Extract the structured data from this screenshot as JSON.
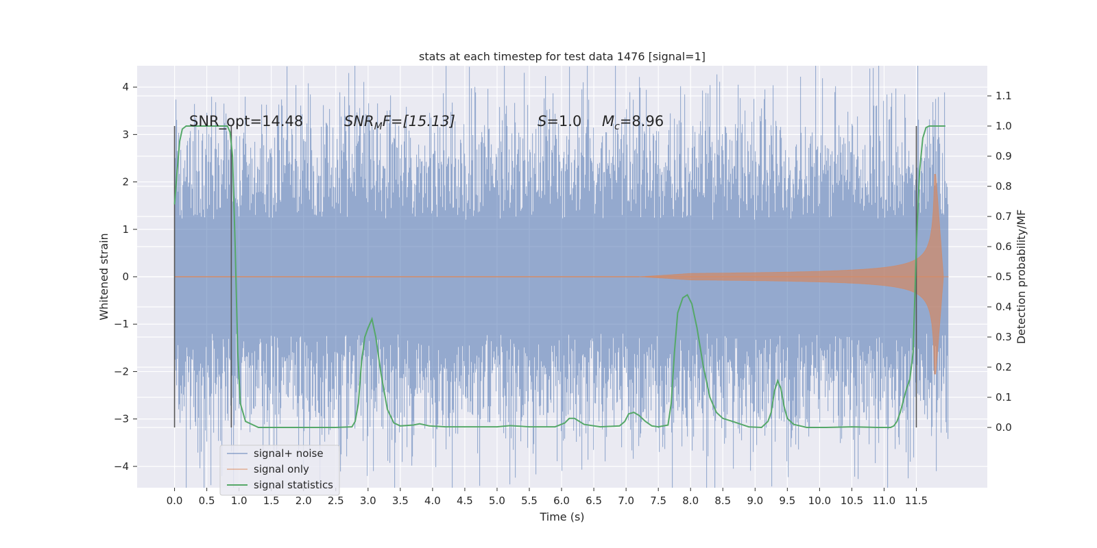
{
  "chart_data": {
    "type": "line",
    "title": "stats at each timestep for test data 1476 [signal=1]",
    "xlabel": "Time (s)",
    "ylabel_left": "Whitened strain",
    "ylabel_right": "Detection probability/MF",
    "xlim": [
      -0.58,
      12.6
    ],
    "ylim_left": [
      -4.45,
      4.45
    ],
    "ylim_right": [
      -0.2,
      1.2
    ],
    "x_ticks": [
      "0.0",
      "0.5",
      "1.0",
      "1.5",
      "2.0",
      "2.5",
      "3.0",
      "3.5",
      "4.0",
      "4.5",
      "5.0",
      "5.5",
      "6.0",
      "6.5",
      "7.0",
      "7.5",
      "8.0",
      "8.5",
      "9.0",
      "9.5",
      "10.0",
      "10.5",
      "11.0",
      "11.5"
    ],
    "y_ticks_left": [
      "−4",
      "−3",
      "−2",
      "−1",
      "0",
      "1",
      "2",
      "3",
      "4"
    ],
    "y_ticks_right": [
      "0.0",
      "0.1",
      "0.2",
      "0.3",
      "0.4",
      "0.5",
      "0.6",
      "0.7",
      "0.8",
      "0.9",
      "1.0",
      "1.1"
    ],
    "grid": true,
    "legend_position": "lower-left",
    "annotations": {
      "snr_opt": "SNR_opt=14.48",
      "snr_mf_sym": "SNR",
      "snr_mf_sub": "M",
      "snr_mf_rest": "F=[15.13]",
      "s_sym": "S",
      "s_rest": "=1.0",
      "mc_sym": "M",
      "mc_sub": "c",
      "mc_rest": "=8.96"
    },
    "vlines": [
      0.0,
      0.88,
      11.5
    ],
    "series": [
      {
        "name": "signal+ noise",
        "color": "#4c72b0",
        "opacity": 0.5,
        "x_range": [
          0.0,
          12.0
        ],
        "std": 1.0
      },
      {
        "name": "signal only",
        "color": "#dd8452",
        "opacity": 0.5,
        "chirp_start": 7.2,
        "merger": 11.8,
        "peak": 2.2
      },
      {
        "name": "signal statistics",
        "color": "#55a868",
        "axis": "right",
        "x": [
          0.0,
          0.04,
          0.08,
          0.12,
          0.18,
          0.25,
          0.35,
          0.5,
          0.7,
          0.82,
          0.86,
          0.9,
          0.94,
          0.98,
          1.02,
          1.1,
          1.3,
          1.6,
          2.0,
          2.5,
          2.75,
          2.8,
          2.85,
          2.9,
          2.95,
          3.0,
          3.06,
          3.12,
          3.2,
          3.3,
          3.4,
          3.5,
          3.7,
          3.8,
          3.95,
          4.2,
          4.6,
          5.0,
          5.2,
          5.5,
          5.9,
          6.05,
          6.12,
          6.2,
          6.35,
          6.6,
          6.9,
          6.98,
          7.04,
          7.12,
          7.2,
          7.3,
          7.4,
          7.5,
          7.65,
          7.7,
          7.75,
          7.8,
          7.88,
          7.95,
          8.02,
          8.1,
          8.2,
          8.3,
          8.4,
          8.5,
          8.65,
          8.9,
          9.1,
          9.2,
          9.25,
          9.3,
          9.35,
          9.4,
          9.45,
          9.5,
          9.6,
          9.8,
          10.1,
          10.5,
          10.9,
          11.1,
          11.15,
          11.2,
          11.25,
          11.3,
          11.35,
          11.4,
          11.45,
          11.5,
          11.55,
          11.6,
          11.65,
          11.7,
          11.8,
          11.9,
          11.95
        ],
        "y": [
          0.74,
          0.85,
          0.95,
          0.99,
          1.0,
          1.0,
          1.0,
          1.0,
          1.0,
          1.0,
          0.98,
          0.9,
          0.6,
          0.25,
          0.08,
          0.02,
          0.0,
          0.0,
          0.0,
          0.0,
          0.002,
          0.02,
          0.08,
          0.22,
          0.3,
          0.33,
          0.36,
          0.3,
          0.18,
          0.06,
          0.015,
          0.005,
          0.008,
          0.012,
          0.005,
          0.002,
          0.002,
          0.002,
          0.006,
          0.002,
          0.002,
          0.015,
          0.03,
          0.03,
          0.01,
          0.002,
          0.005,
          0.02,
          0.045,
          0.05,
          0.04,
          0.02,
          0.005,
          0.002,
          0.008,
          0.08,
          0.25,
          0.38,
          0.43,
          0.44,
          0.41,
          0.33,
          0.2,
          0.1,
          0.05,
          0.03,
          0.02,
          0.002,
          0.0,
          0.02,
          0.05,
          0.12,
          0.155,
          0.13,
          0.07,
          0.03,
          0.01,
          0.0,
          0.0,
          0.002,
          0.0,
          0.0,
          0.005,
          0.02,
          0.05,
          0.09,
          0.13,
          0.16,
          0.25,
          0.6,
          0.85,
          0.96,
          0.995,
          1.0,
          1.0,
          1.0,
          1.0
        ]
      }
    ]
  }
}
